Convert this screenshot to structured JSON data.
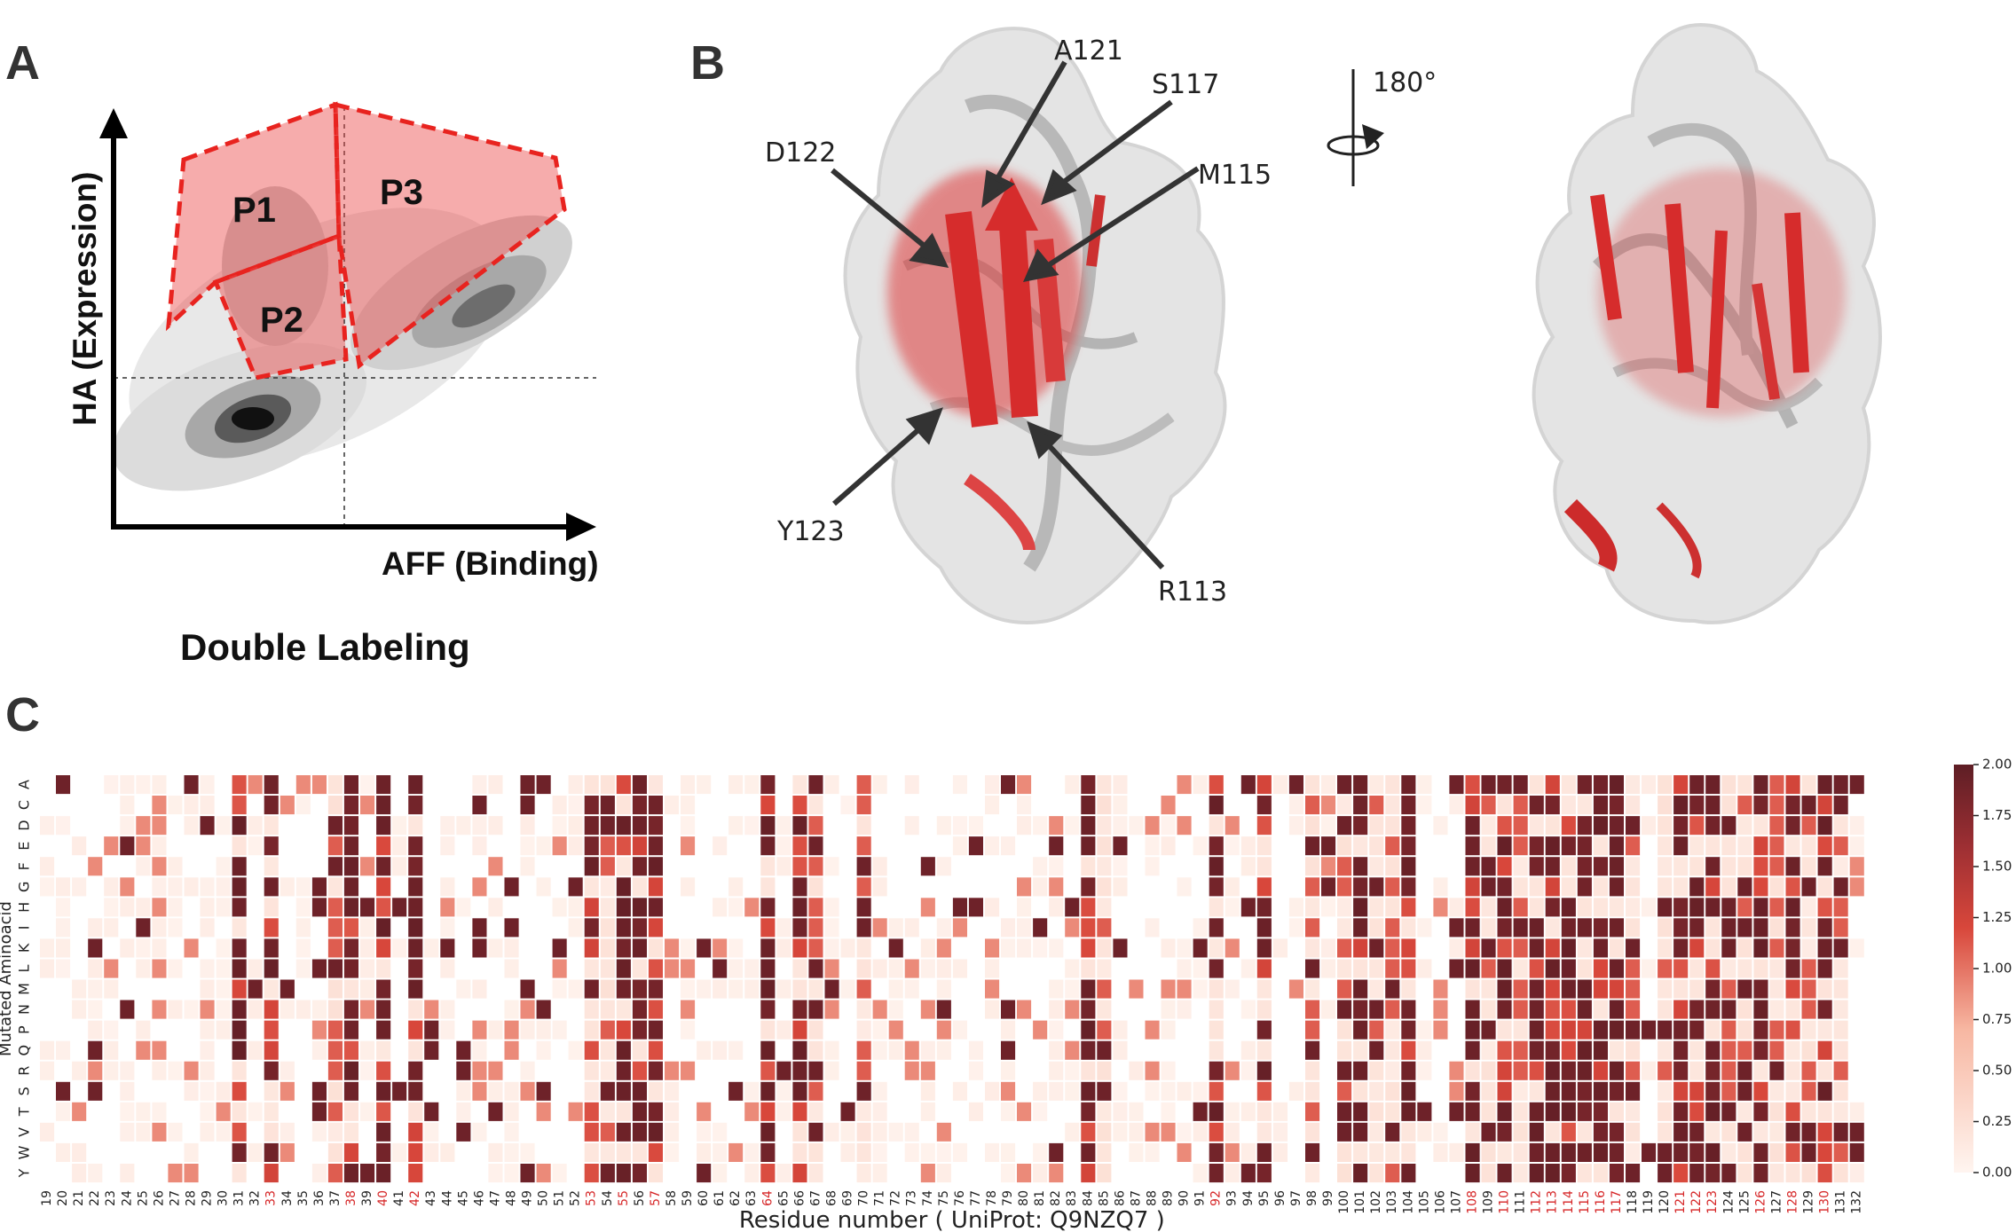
{
  "panels": {
    "a": {
      "label": "A",
      "y_axis": "HA (Expression)",
      "x_axis": "AFF (Binding)",
      "caption": "Double Labeling",
      "gates": [
        "P1",
        "P2",
        "P3"
      ]
    },
    "b": {
      "label": "B",
      "rotation": "180°",
      "annotations": [
        "A121",
        "S117",
        "D122",
        "M115",
        "Y123",
        "R113"
      ]
    },
    "c": {
      "label": "C"
    }
  },
  "colors": {
    "dark": "#67222a",
    "mid": "#d8473b",
    "light": "#fbe3da",
    "gate": "#e8231f",
    "highlight_tick": "#d62728"
  },
  "chart_data": {
    "type": "heatmap",
    "xlabel": "Residue number ( UniProt: Q9NZQ7 )",
    "ylabel": "Mutated Aminoacid",
    "x_start": 19,
    "x_end": 132,
    "rows": [
      "A",
      "C",
      "D",
      "E",
      "F",
      "G",
      "H",
      "I",
      "K",
      "L",
      "M",
      "N",
      "P",
      "Q",
      "R",
      "S",
      "T",
      "V",
      "W",
      "Y"
    ],
    "highlighted_residues": [
      33,
      38,
      40,
      42,
      53,
      55,
      57,
      64,
      92,
      108,
      110,
      112,
      113,
      114,
      115,
      116,
      117,
      121,
      122,
      123,
      126,
      128,
      130
    ],
    "colorbar_ticks": [
      "0.00",
      "0.25",
      "0.50",
      "0.75",
      "1.00",
      "1.25",
      "1.50",
      "1.75",
      "2.00"
    ],
    "vmin": 0,
    "vmax": 2,
    "strong_columns": [
      31,
      33,
      38,
      40,
      42,
      53,
      55,
      56,
      57,
      64,
      66,
      84,
      92,
      95,
      101,
      104,
      108,
      110,
      112,
      113,
      114,
      115,
      116,
      117,
      121,
      122,
      123,
      126,
      128,
      130
    ],
    "medium_columns": [
      37,
      54,
      67,
      70,
      85,
      98,
      100,
      102,
      103,
      109,
      111,
      118,
      120,
      124,
      125,
      127,
      129,
      131
    ]
  }
}
